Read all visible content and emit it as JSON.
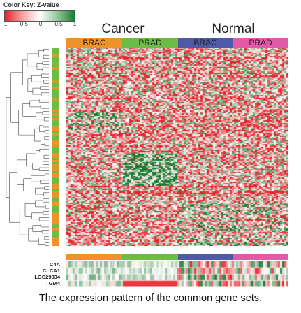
{
  "figure": {
    "caption": "The expression pattern of the common gene sets."
  },
  "color_key": {
    "title": "Color Key: Z-value",
    "ticks": [
      "-1",
      "-0.5",
      "0",
      "0.5",
      "1"
    ],
    "low_color": "#e8222a",
    "mid_color": "#ffffff",
    "high_color": "#1a7a30"
  },
  "groups": [
    {
      "label": "Cancer",
      "subgroups": [
        {
          "label": "BRAC",
          "color": "#f0922a"
        },
        {
          "label": "PRAD",
          "color": "#6cbd45"
        }
      ]
    },
    {
      "label": "Normal",
      "subgroups": [
        {
          "label": "BRAC",
          "color": "#4e5aa8"
        },
        {
          "label": "PRAD",
          "color": "#e25aa8"
        }
      ]
    }
  ],
  "row_side_colors": [
    "#f0922a",
    "#6cbd45"
  ],
  "genes": [
    "C4A",
    "CLCA1",
    "LOC29034",
    "TGM4"
  ],
  "chart_data": {
    "type": "heatmap",
    "title": "",
    "column_groups": [
      "Cancer BRAC",
      "Cancer PRAD",
      "Normal BRAC",
      "Normal PRAD"
    ],
    "value_label": "Z-value",
    "value_range": [
      -1,
      1
    ],
    "bottom_panel_rows": [
      "C4A",
      "CLCA1",
      "LOC29034",
      "TGM4"
    ]
  }
}
